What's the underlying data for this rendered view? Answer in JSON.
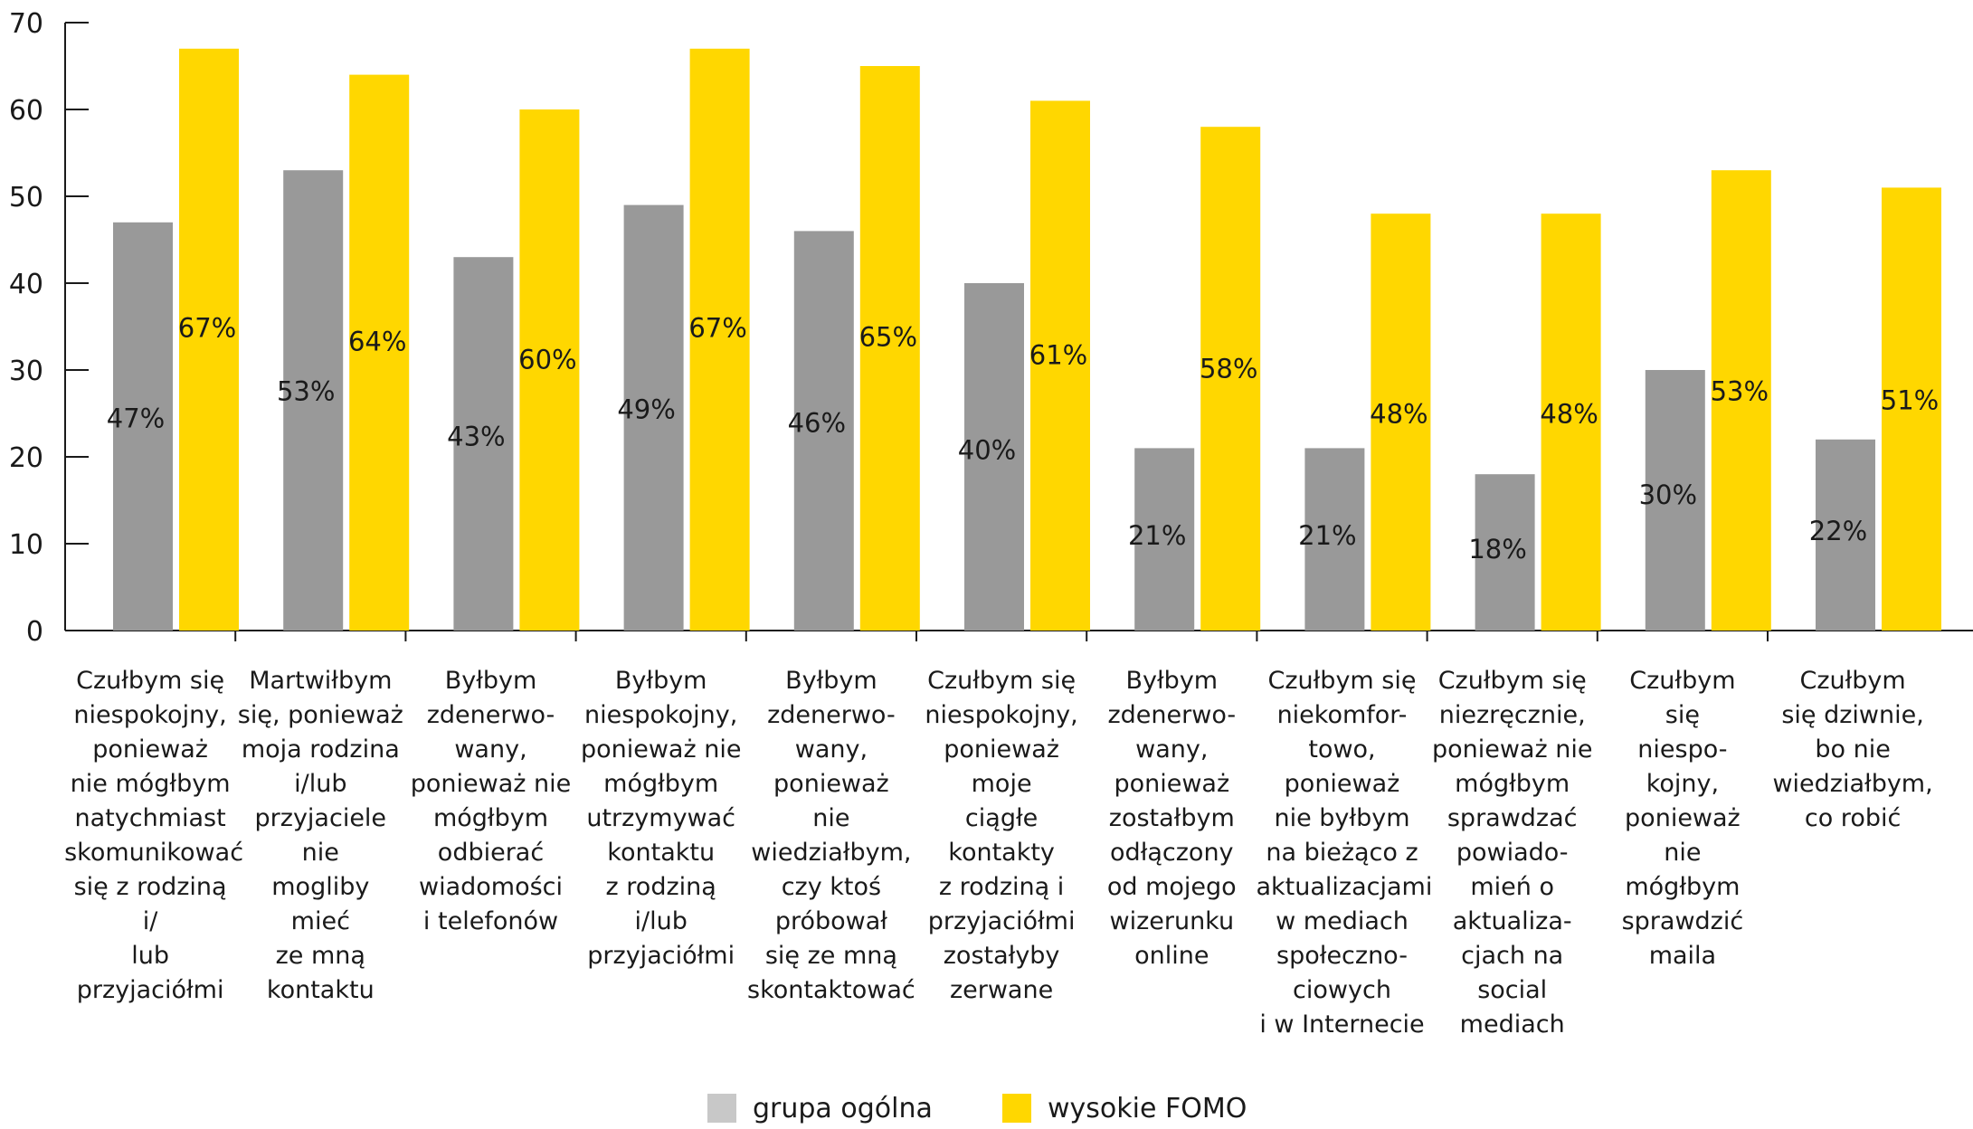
{
  "chart_data": {
    "type": "bar",
    "ylim": [
      0,
      70
    ],
    "yticks": [
      "0",
      "10",
      "20",
      "30",
      "40",
      "50",
      "60",
      "70"
    ],
    "categories": [
      "Czułbym się\nniespokojny,\nponieważ\nnie mógłbym\nnatychmiast\nskomunikować\nsię z rodziną i/\nlub przyjaciółmi",
      "Martwiłbym\nsię, ponieważ\nmoja rodzina\ni/lub\nprzyjaciele\nnie\nmogliby\nmieć\nze mną\nkontaktu",
      "Byłbym\nzdenerwo-\nwany,\nponieważ nie\nmógłbym\nodbierać\nwiadomości\ni telefonów",
      "Byłbym\nniespokojny,\nponieważ nie\nmógłbym\nutrzymywać\nkontaktu\nz rodziną\ni/lub\nprzyjaciółmi",
      "Byłbym\nzdenerwo-\nwany,\nponieważ\nnie\nwiedziałbym,\nczy ktoś\npróbował\nsię ze mną\nskontaktować",
      "Czułbym się\nniespokojny,\nponieważ\nmoje\nciągłe\nkontakty\nz rodziną i\nprzyjaciółmi\nzostałyby\nzerwane",
      "Byłbym\nzdenerwo-\nwany,\nponieważ\nzostałbym\nodłączony\nod mojego\nwizerunku\nonline",
      "Czułbym się\nniekomfor-\ntowo,\nponieważ\nnie byłbym\nna bieżąco z\naktualizacjami\nw mediach\nspołeczno-\nciowych\ni w Internecie",
      "Czułbym się\nniezręcznie,\nponieważ nie\nmógłbym\nsprawdzać\npowiado-\nmień o\naktualiza-\ncjach na\nsocial\nmediach",
      "Czułbym\nsię\nniespo-\nkojny,\nponieważ\nnie\nmógłbym\nsprawdzić\nmaila",
      "Czułbym\nsię dziwnie,\nbo nie\nwiedziałbym,\nco robić"
    ],
    "series": [
      {
        "name": "grupa ogólna",
        "color": "#999999",
        "values": [
          47,
          53,
          43,
          49,
          46,
          40,
          21,
          21,
          18,
          30,
          22
        ],
        "labels": [
          "47%",
          "53%",
          "43%",
          "49%",
          "46%",
          "40%",
          "21%",
          "21%",
          "18%",
          "30%",
          "22%"
        ]
      },
      {
        "name": "wysokie FOMO",
        "color": "#FFD700",
        "values": [
          67,
          64,
          60,
          67,
          65,
          61,
          58,
          48,
          48,
          53,
          51
        ],
        "labels": [
          "67%",
          "64%",
          "60%",
          "67%",
          "65%",
          "61%",
          "58%",
          "48%",
          "48%",
          "53%",
          "51%"
        ]
      }
    ],
    "grid": false,
    "legend_position": "bottom"
  },
  "legend": {
    "items": [
      {
        "label": "grupa ogólna",
        "color": "#C8C8C8"
      },
      {
        "label": "wysokie FOMO",
        "color": "#FFD700"
      }
    ]
  }
}
